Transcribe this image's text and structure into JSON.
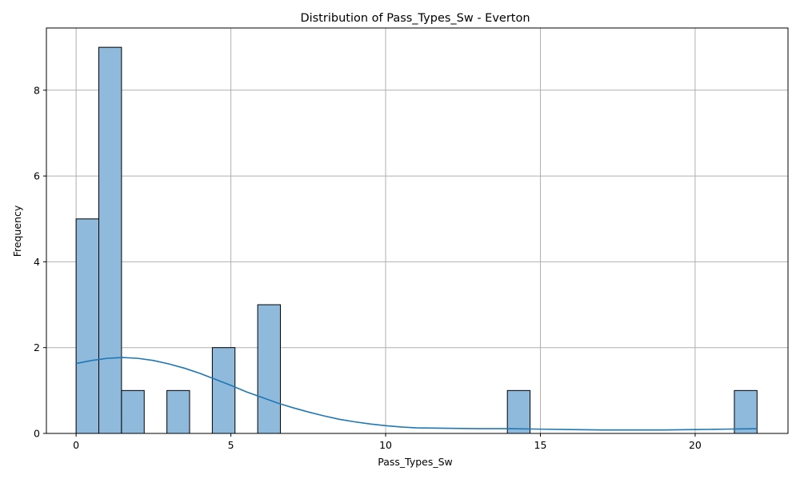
{
  "chart_data": {
    "type": "bar",
    "title": "Distribution of Pass_Types_Sw - Everton",
    "xlabel": "Pass_Types_Sw",
    "ylabel": "Frequency",
    "xlim": [
      -0.96,
      23.0
    ],
    "ylim": [
      0,
      9.45
    ],
    "xticks": [
      0,
      5,
      10,
      15,
      20
    ],
    "yticks": [
      0,
      2,
      4,
      6,
      8
    ],
    "grid": true,
    "bin_width": 0.7333,
    "bins": [
      {
        "start": 0.0,
        "end": 0.7333,
        "count": 5
      },
      {
        "start": 0.7333,
        "end": 1.4667,
        "count": 9
      },
      {
        "start": 1.4667,
        "end": 2.2,
        "count": 1
      },
      {
        "start": 2.9333,
        "end": 3.6667,
        "count": 1
      },
      {
        "start": 4.4,
        "end": 5.1333,
        "count": 2
      },
      {
        "start": 5.8667,
        "end": 6.6,
        "count": 3
      },
      {
        "start": 13.9333,
        "end": 14.6667,
        "count": 1
      },
      {
        "start": 21.2667,
        "end": 22.0,
        "count": 1
      }
    ],
    "kde": {
      "x": [
        0,
        0.5,
        1,
        1.5,
        2,
        2.5,
        3,
        3.5,
        4,
        4.5,
        5,
        5.5,
        6,
        6.5,
        7,
        7.5,
        8,
        8.5,
        9,
        9.5,
        10,
        10.5,
        11,
        12,
        13,
        14,
        15,
        16,
        17,
        18,
        19,
        20,
        21,
        22
      ],
      "y": [
        1.63,
        1.7,
        1.75,
        1.77,
        1.75,
        1.7,
        1.62,
        1.52,
        1.4,
        1.26,
        1.12,
        0.97,
        0.84,
        0.71,
        0.6,
        0.5,
        0.41,
        0.33,
        0.27,
        0.22,
        0.18,
        0.15,
        0.13,
        0.12,
        0.11,
        0.11,
        0.1,
        0.09,
        0.08,
        0.08,
        0.08,
        0.09,
        0.1,
        0.11
      ]
    },
    "colors": {
      "bar_fill": "#8fbadc",
      "bar_edge": "#000000",
      "kde_line": "#1f77b4",
      "grid": "#b0b0b0"
    }
  }
}
